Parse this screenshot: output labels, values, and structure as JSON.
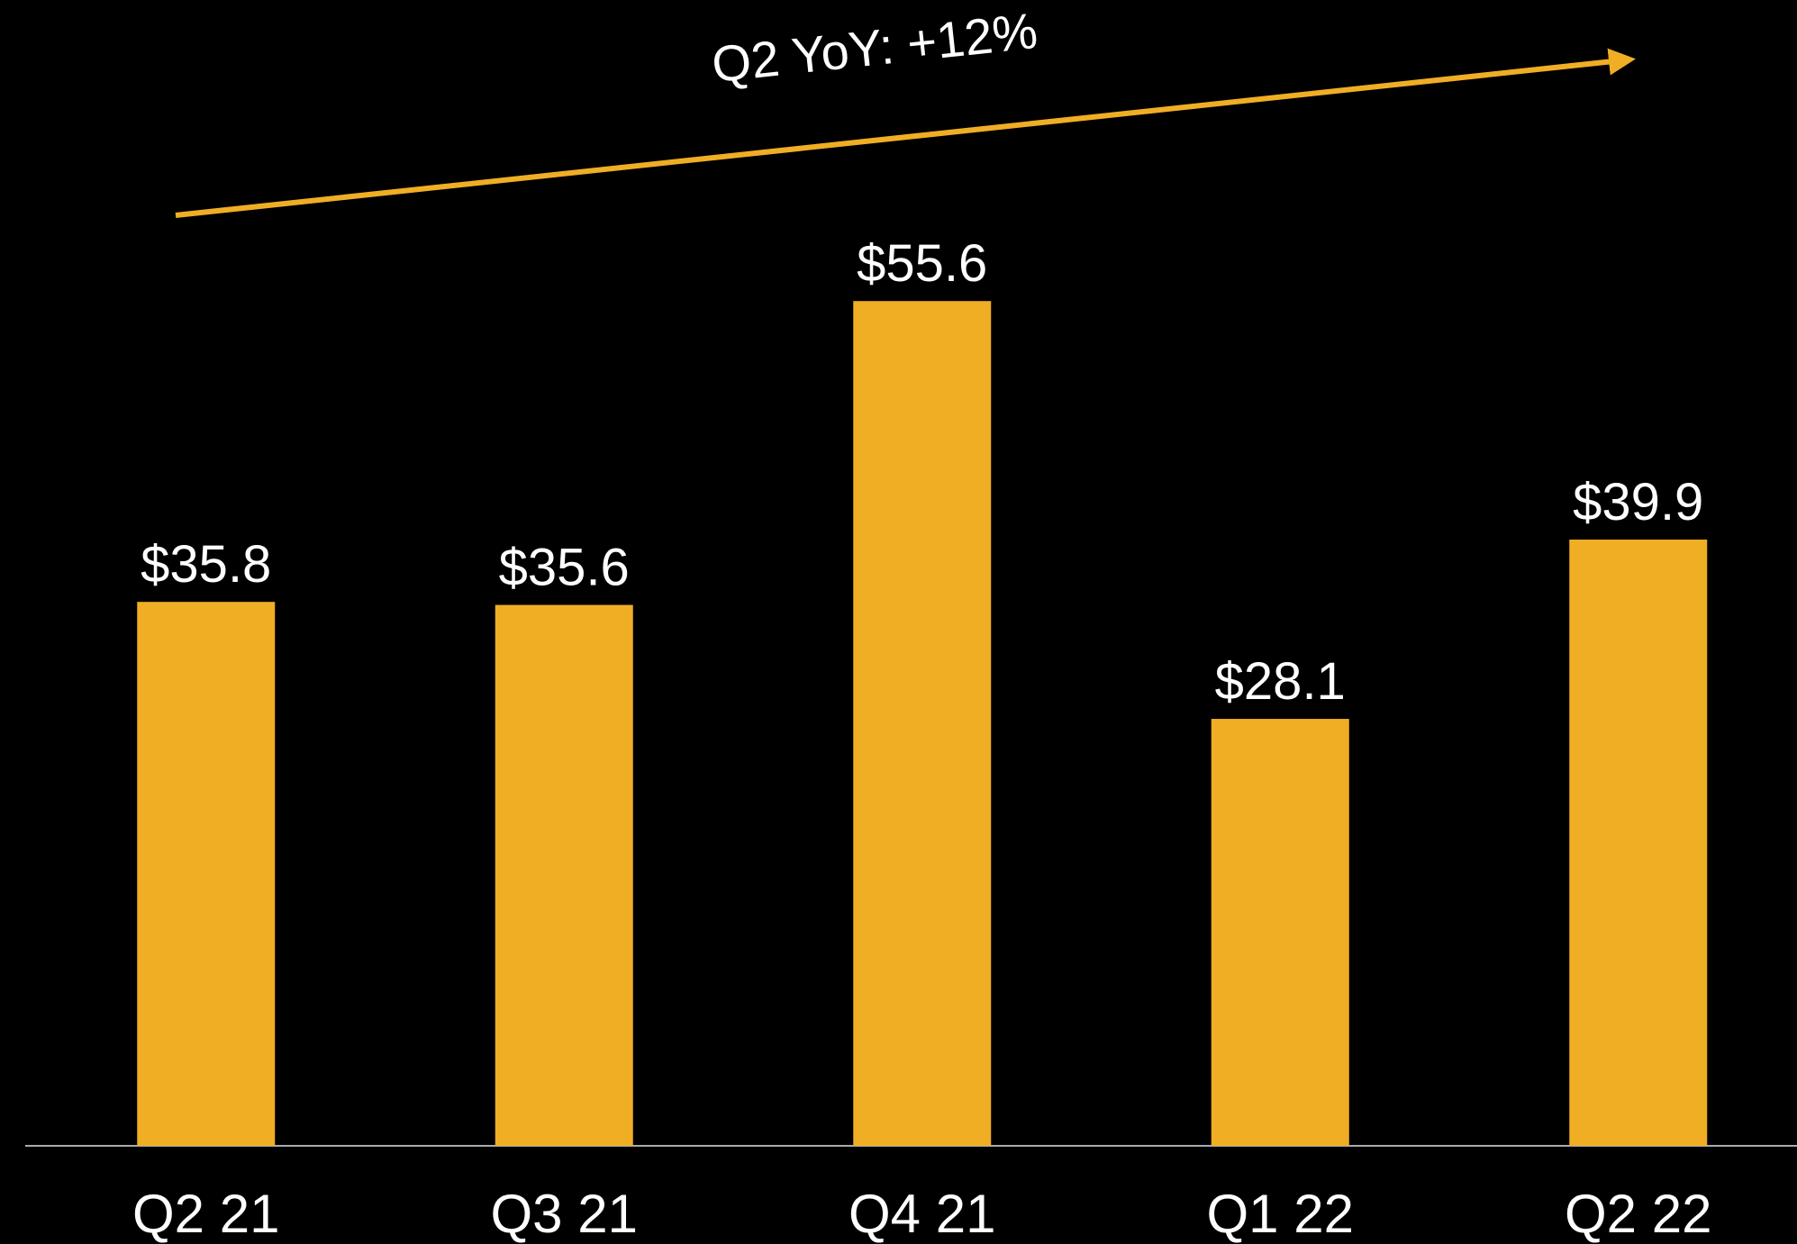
{
  "chart_data": {
    "type": "bar",
    "annotation": "Q2 YoY: +12%",
    "categories": [
      "Q2 21",
      "Q3 21",
      "Q4 21",
      "Q1 22",
      "Q2 22"
    ],
    "values": [
      35.8,
      35.6,
      55.6,
      28.1,
      39.9
    ],
    "value_labels": [
      "$35.8",
      "$35.6",
      "$55.6",
      "$28.1",
      "$39.9"
    ],
    "color": "#f0ae25",
    "ylim": [
      0,
      75
    ]
  }
}
